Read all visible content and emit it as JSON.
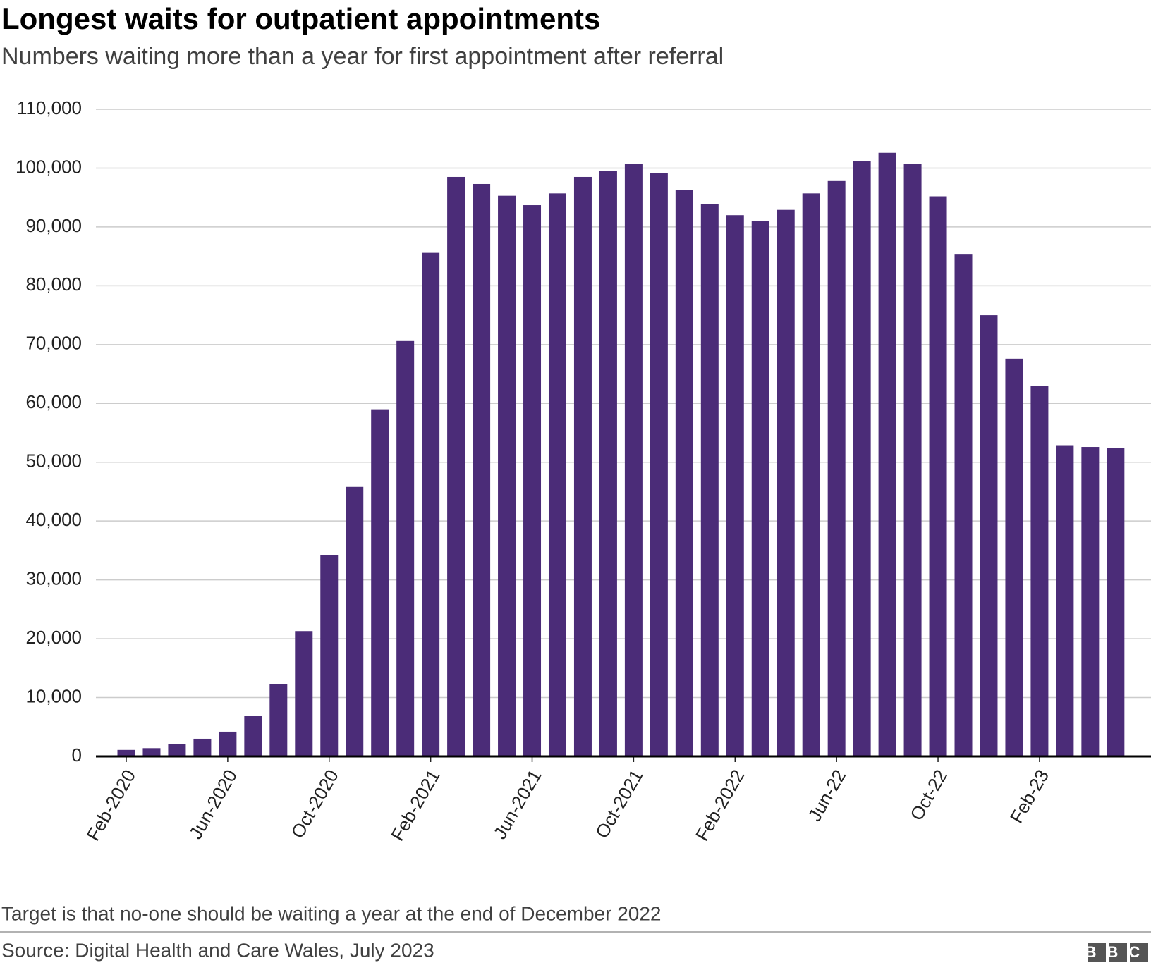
{
  "chart_data": {
    "type": "bar",
    "title": "Longest waits for outpatient appointments",
    "subtitle": "Numbers waiting more than a year for first appointment after referral",
    "categories": [
      "Feb-2020",
      null,
      null,
      null,
      "Jun-2020",
      null,
      null,
      null,
      "Oct-2020",
      null,
      null,
      null,
      "Feb-2021",
      null,
      null,
      null,
      "Jun-2021",
      null,
      null,
      null,
      "Oct-2021",
      null,
      null,
      null,
      "Feb-2022",
      null,
      null,
      null,
      "Jun-22",
      null,
      null,
      null,
      "Oct-22",
      null,
      null,
      null,
      "Feb-23",
      null,
      null,
      null
    ],
    "values": [
      1100,
      1400,
      2100,
      3000,
      4200,
      6900,
      12300,
      21300,
      34200,
      45800,
      59000,
      70600,
      85600,
      98500,
      97300,
      95300,
      93700,
      95700,
      98500,
      99500,
      100700,
      99200,
      96300,
      93900,
      92000,
      91000,
      92900,
      95700,
      97800,
      101200,
      102600,
      100700,
      95200,
      85300,
      75000,
      67600,
      63000,
      52900,
      52600,
      52400
    ],
    "color": "#4b2c78",
    "ylim": [
      0,
      110000
    ],
    "yticks": [
      {
        "value": 0,
        "label": "0"
      },
      {
        "value": 10000,
        "label": "10,000"
      },
      {
        "value": 20000,
        "label": "20,000"
      },
      {
        "value": 30000,
        "label": "30,000"
      },
      {
        "value": 40000,
        "label": "40,000"
      },
      {
        "value": 50000,
        "label": "50,000"
      },
      {
        "value": 60000,
        "label": "60,000"
      },
      {
        "value": 70000,
        "label": "70,000"
      },
      {
        "value": 80000,
        "label": "80,000"
      },
      {
        "value": 90000,
        "label": "90,000"
      },
      {
        "value": 100000,
        "label": "100,000"
      },
      {
        "value": 110000,
        "label": "110,000"
      }
    ],
    "grid": true,
    "note": "Target is that no-one should be waiting a year at the end of December 2022",
    "source": "Source: Digital Health and Care Wales, July 2023",
    "logo": "BBC"
  }
}
